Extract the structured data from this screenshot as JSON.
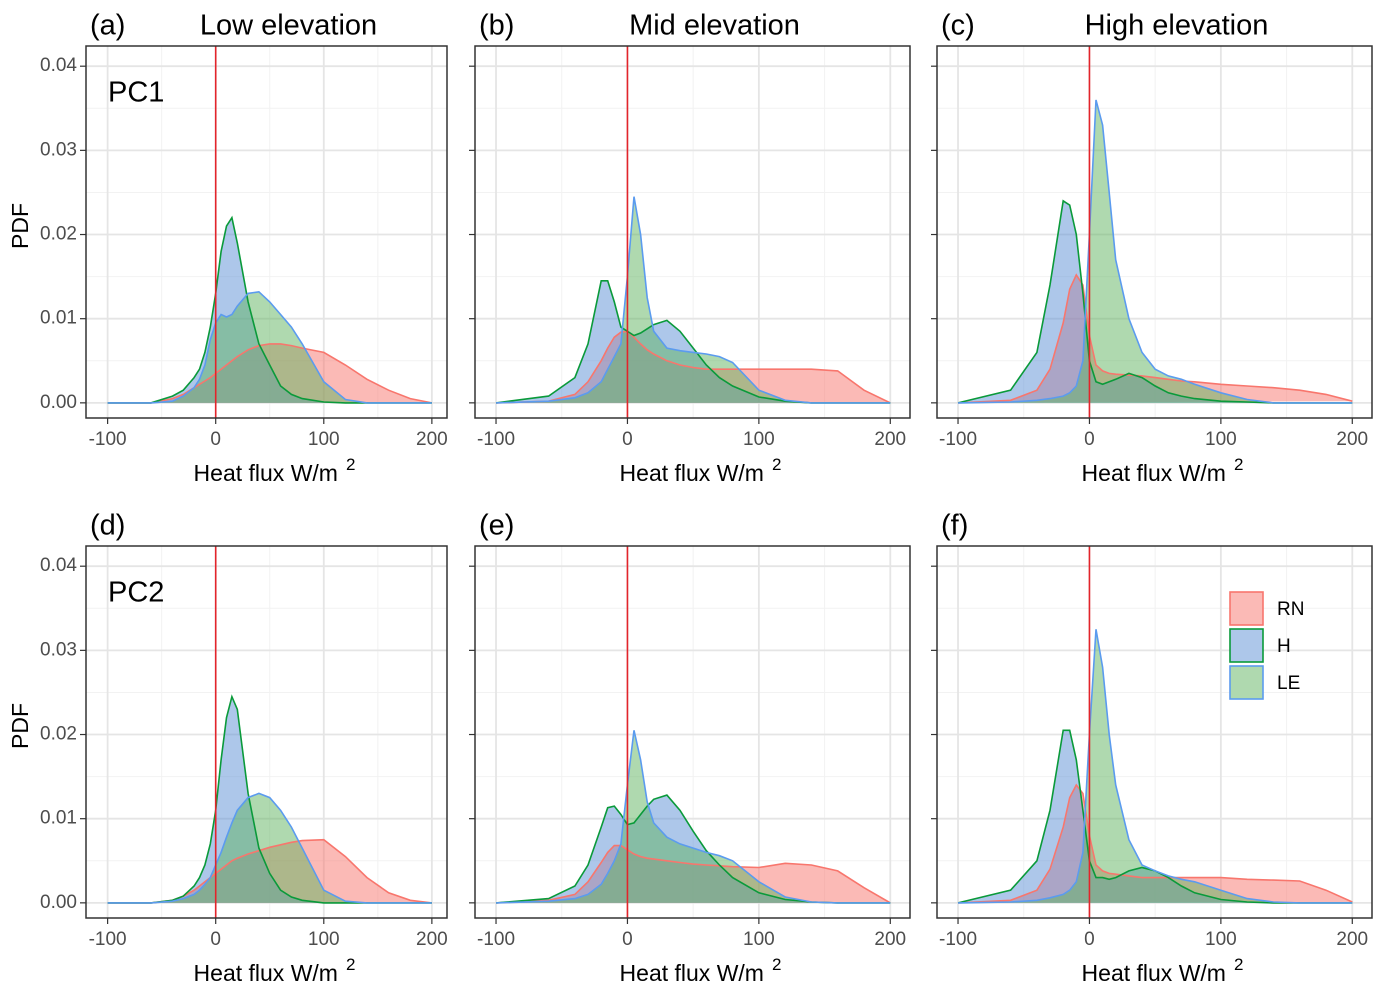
{
  "chart_data": [
    {
      "type": "area",
      "panel_label": "(a)",
      "title": "Low elevation",
      "annotation": "PC1",
      "ylabel": "PDF",
      "xlabel": "Heat flux  W/m",
      "xlabel_superscript": "2",
      "x": [
        -100,
        -60,
        -40,
        -30,
        -20,
        -15,
        -10,
        -5,
        0,
        5,
        10,
        15,
        20,
        30,
        40,
        50,
        60,
        70,
        80,
        100,
        120,
        140,
        160,
        180,
        200
      ],
      "series": [
        {
          "color": "#f8766d",
          "line_color": "#f8766d",
          "values": [
            0,
            0,
            0.0005,
            0.001,
            0.0018,
            0.0022,
            0.0026,
            0.003,
            0.0035,
            0.004,
            0.0045,
            0.005,
            0.0055,
            0.0063,
            0.0068,
            0.007,
            0.007,
            0.0068,
            0.0065,
            0.006,
            0.0045,
            0.0028,
            0.0015,
            0.0005,
            0
          ]
        },
        {
          "color": "#5b8fd6",
          "line_color": "#0a9a3a",
          "values": [
            0,
            0,
            0.0008,
            0.0015,
            0.003,
            0.004,
            0.006,
            0.009,
            0.013,
            0.018,
            0.021,
            0.022,
            0.019,
            0.012,
            0.007,
            0.0045,
            0.002,
            0.001,
            0.0005,
            0.0001,
            0,
            0,
            0,
            0,
            0
          ]
        },
        {
          "color": "#5fb35f",
          "line_color": "#5b9bef",
          "values": [
            0,
            0,
            0.0002,
            0.0008,
            0.0018,
            0.0028,
            0.0045,
            0.0075,
            0.0095,
            0.0105,
            0.0102,
            0.0105,
            0.0115,
            0.013,
            0.0132,
            0.012,
            0.0105,
            0.009,
            0.007,
            0.0025,
            0.0004,
            0,
            0,
            0,
            0
          ]
        }
      ],
      "xlim": [
        -120,
        214
      ],
      "ylim": [
        -0.0018,
        0.0424
      ],
      "xticks": [
        -100,
        0,
        100,
        200
      ],
      "yticks": [
        {
          "value": 0,
          "label": "0.00"
        },
        0.01,
        0.02,
        0.03,
        0.04
      ],
      "minor_xticks": [
        -50,
        50,
        150
      ],
      "minor_yticks": [
        0.005,
        0.015,
        0.025,
        0.035
      ],
      "grid": true,
      "vline": 0,
      "vline_color": "#e3242b"
    },
    {
      "type": "area",
      "panel_label": "(b)",
      "title": "Mid elevation",
      "xlabel": "Heat flux  W/m",
      "xlabel_superscript": "2",
      "x": [
        -100,
        -60,
        -40,
        -30,
        -20,
        -15,
        -10,
        -5,
        0,
        5,
        10,
        15,
        20,
        30,
        40,
        50,
        60,
        70,
        80,
        100,
        120,
        140,
        160,
        180,
        200
      ],
      "series": [
        {
          "color": "#f8766d",
          "line_color": "#f8766d",
          "values": [
            0,
            0.0002,
            0.001,
            0.0025,
            0.005,
            0.0065,
            0.0078,
            0.0084,
            0.0085,
            0.0078,
            0.007,
            0.0063,
            0.0058,
            0.005,
            0.0045,
            0.0042,
            0.004,
            0.004,
            0.004,
            0.004,
            0.004,
            0.004,
            0.0038,
            0.0015,
            0
          ]
        },
        {
          "color": "#5b8fd6",
          "line_color": "#0a9a3a",
          "values": [
            0,
            0.0008,
            0.003,
            0.007,
            0.0145,
            0.0145,
            0.012,
            0.009,
            0.0085,
            0.008,
            0.0083,
            0.0088,
            0.0093,
            0.0098,
            0.0085,
            0.0065,
            0.0045,
            0.003,
            0.002,
            0.0007,
            0.0002,
            0,
            0,
            0,
            0
          ]
        },
        {
          "color": "#5fb35f",
          "line_color": "#5b9bef",
          "values": [
            0,
            0.0002,
            0.0006,
            0.0012,
            0.0025,
            0.004,
            0.0055,
            0.007,
            0.015,
            0.0245,
            0.02,
            0.0125,
            0.0085,
            0.0065,
            0.0062,
            0.006,
            0.0058,
            0.0055,
            0.0048,
            0.0015,
            0.0003,
            0,
            0,
            0,
            0
          ]
        }
      ],
      "xlim": [
        -116,
        215
      ],
      "ylim": [
        -0.0018,
        0.0424
      ],
      "xticks": [
        -100,
        0,
        100,
        200
      ],
      "yticks": [
        0,
        0.01,
        0.02,
        0.03,
        0.04
      ],
      "show_ytick_labels": false,
      "minor_xticks": [
        -50,
        50,
        150
      ],
      "minor_yticks": [
        0.005,
        0.015,
        0.025,
        0.035
      ],
      "grid": true,
      "vline": 0,
      "vline_color": "#e3242b"
    },
    {
      "type": "area",
      "panel_label": "(c)",
      "title": "High elevation",
      "xlabel": "Heat flux  W/m",
      "xlabel_superscript": "2",
      "x": [
        -100,
        -60,
        -40,
        -30,
        -20,
        -15,
        -10,
        -5,
        0,
        5,
        10,
        15,
        20,
        30,
        40,
        50,
        60,
        70,
        80,
        100,
        120,
        140,
        160,
        180,
        200
      ],
      "series": [
        {
          "color": "#f8766d",
          "line_color": "#f8766d",
          "values": [
            0,
            0.0003,
            0.0015,
            0.004,
            0.0095,
            0.0135,
            0.0152,
            0.014,
            0.008,
            0.0045,
            0.0038,
            0.0035,
            0.0034,
            0.0033,
            0.0032,
            0.003,
            0.0028,
            0.0026,
            0.0025,
            0.0022,
            0.002,
            0.0018,
            0.0015,
            0.001,
            0.0002
          ]
        },
        {
          "color": "#5b8fd6",
          "line_color": "#0a9a3a",
          "values": [
            0,
            0.0015,
            0.006,
            0.014,
            0.024,
            0.0235,
            0.02,
            0.013,
            0.005,
            0.0025,
            0.0022,
            0.0025,
            0.0028,
            0.0035,
            0.003,
            0.002,
            0.0012,
            0.0008,
            0.0005,
            0.0002,
            0.0001,
            0,
            0,
            0,
            0
          ]
        },
        {
          "color": "#5fb35f",
          "line_color": "#5b9bef",
          "values": [
            0,
            0.0001,
            0.0003,
            0.0005,
            0.0008,
            0.0012,
            0.002,
            0.005,
            0.02,
            0.036,
            0.033,
            0.025,
            0.017,
            0.01,
            0.006,
            0.004,
            0.0032,
            0.0028,
            0.0022,
            0.0012,
            0.0004,
            0,
            0,
            0,
            0
          ]
        }
      ],
      "xlim": [
        -116,
        215
      ],
      "ylim": [
        -0.0018,
        0.0424
      ],
      "xticks": [
        -100,
        0,
        100,
        200
      ],
      "yticks": [
        0,
        0.01,
        0.02,
        0.03,
        0.04
      ],
      "show_ytick_labels": false,
      "minor_xticks": [
        -50,
        50,
        150
      ],
      "minor_yticks": [
        0.005,
        0.015,
        0.025,
        0.035
      ],
      "grid": true,
      "vline": 0,
      "vline_color": "#e3242b"
    },
    {
      "type": "area",
      "panel_label": "(d)",
      "annotation": "PC2",
      "ylabel": "PDF",
      "xlabel": "Heat flux  W/m",
      "xlabel_superscript": "2",
      "x": [
        -100,
        -60,
        -40,
        -30,
        -20,
        -15,
        -10,
        -5,
        0,
        5,
        10,
        15,
        20,
        30,
        40,
        50,
        60,
        70,
        80,
        100,
        120,
        140,
        160,
        180,
        200
      ],
      "series": [
        {
          "color": "#f8766d",
          "line_color": "#f8766d",
          "values": [
            0,
            0,
            0.0003,
            0.0008,
            0.0015,
            0.002,
            0.0025,
            0.003,
            0.0035,
            0.004,
            0.0045,
            0.005,
            0.0053,
            0.0058,
            0.0062,
            0.0066,
            0.0069,
            0.0072,
            0.0074,
            0.0075,
            0.0055,
            0.003,
            0.0012,
            0.0003,
            0
          ]
        },
        {
          "color": "#5b8fd6",
          "line_color": "#0a9a3a",
          "values": [
            0,
            0,
            0.0003,
            0.0008,
            0.002,
            0.003,
            0.0045,
            0.007,
            0.011,
            0.017,
            0.022,
            0.0245,
            0.023,
            0.013,
            0.0065,
            0.0035,
            0.0015,
            0.0007,
            0.0003,
            0,
            0,
            0,
            0,
            0,
            0
          ]
        },
        {
          "color": "#5fb35f",
          "line_color": "#5b9bef",
          "values": [
            0,
            0,
            0.0002,
            0.0005,
            0.001,
            0.0015,
            0.0022,
            0.003,
            0.0045,
            0.006,
            0.0078,
            0.0095,
            0.011,
            0.0125,
            0.013,
            0.0125,
            0.011,
            0.009,
            0.0065,
            0.0015,
            0.0002,
            0,
            0,
            0,
            0
          ]
        }
      ],
      "xlim": [
        -120,
        214
      ],
      "ylim": [
        -0.0018,
        0.0424
      ],
      "xticks": [
        -100,
        0,
        100,
        200
      ],
      "yticks": [
        {
          "value": 0,
          "label": "0.00"
        },
        0.01,
        0.02,
        0.03,
        0.04
      ],
      "minor_xticks": [
        -50,
        50,
        150
      ],
      "minor_yticks": [
        0.005,
        0.015,
        0.025,
        0.035
      ],
      "grid": true,
      "vline": 0,
      "vline_color": "#e3242b"
    },
    {
      "type": "area",
      "panel_label": "(e)",
      "xlabel": "Heat flux  W/m",
      "xlabel_superscript": "2",
      "x": [
        -100,
        -60,
        -40,
        -30,
        -20,
        -15,
        -10,
        -5,
        0,
        5,
        10,
        15,
        20,
        30,
        40,
        50,
        60,
        70,
        80,
        100,
        120,
        140,
        160,
        180,
        200
      ],
      "series": [
        {
          "color": "#f8766d",
          "line_color": "#f8766d",
          "values": [
            0,
            0.0003,
            0.001,
            0.0025,
            0.0048,
            0.006,
            0.0068,
            0.0068,
            0.0063,
            0.0058,
            0.0055,
            0.0053,
            0.0052,
            0.005,
            0.0048,
            0.0046,
            0.0045,
            0.0044,
            0.0043,
            0.0042,
            0.0047,
            0.0045,
            0.0038,
            0.0018,
            0
          ]
        },
        {
          "color": "#5b8fd6",
          "line_color": "#0a9a3a",
          "values": [
            0,
            0.0005,
            0.002,
            0.0045,
            0.009,
            0.0113,
            0.0115,
            0.0105,
            0.0093,
            0.0095,
            0.0105,
            0.0115,
            0.0123,
            0.0128,
            0.011,
            0.0085,
            0.0062,
            0.0045,
            0.003,
            0.0012,
            0.0004,
            0.0001,
            0,
            0,
            0
          ]
        },
        {
          "color": "#5fb35f",
          "line_color": "#5b9bef",
          "values": [
            0,
            0.0002,
            0.0005,
            0.001,
            0.0022,
            0.0035,
            0.005,
            0.007,
            0.014,
            0.0205,
            0.017,
            0.012,
            0.0095,
            0.0078,
            0.007,
            0.0065,
            0.006,
            0.0056,
            0.005,
            0.0025,
            0.0007,
            0.0001,
            0,
            0,
            0
          ]
        }
      ],
      "xlim": [
        -116,
        215
      ],
      "ylim": [
        -0.0018,
        0.0424
      ],
      "xticks": [
        -100,
        0,
        100,
        200
      ],
      "yticks": [
        0,
        0.01,
        0.02,
        0.03,
        0.04
      ],
      "show_ytick_labels": false,
      "minor_xticks": [
        -50,
        50,
        150
      ],
      "minor_yticks": [
        0.005,
        0.015,
        0.025,
        0.035
      ],
      "grid": true,
      "vline": 0,
      "vline_color": "#e3242b"
    },
    {
      "type": "area",
      "panel_label": "(f)",
      "xlabel": "Heat flux  W/m",
      "xlabel_superscript": "2",
      "legend": "top-right",
      "x": [
        -100,
        -60,
        -40,
        -30,
        -20,
        -15,
        -10,
        -5,
        0,
        5,
        10,
        15,
        20,
        30,
        40,
        50,
        60,
        70,
        80,
        100,
        120,
        140,
        160,
        180,
        200
      ],
      "series": [
        {
          "name": "RN",
          "color": "#f8766d",
          "line_color": "#f8766d",
          "values": [
            0,
            0.0003,
            0.0015,
            0.004,
            0.009,
            0.0125,
            0.014,
            0.013,
            0.008,
            0.0045,
            0.0038,
            0.0035,
            0.0034,
            0.0032,
            0.003,
            0.003,
            0.003,
            0.003,
            0.003,
            0.003,
            0.0028,
            0.0027,
            0.0026,
            0.0015,
            0.0001
          ]
        },
        {
          "name": "H",
          "color": "#5b8fd6",
          "line_color": "#0a9a3a",
          "values": [
            0,
            0.0015,
            0.005,
            0.011,
            0.0205,
            0.0205,
            0.017,
            0.011,
            0.005,
            0.003,
            0.003,
            0.0028,
            0.003,
            0.0038,
            0.0042,
            0.0038,
            0.003,
            0.002,
            0.0012,
            0.0004,
            0.0001,
            0,
            0,
            0,
            0
          ]
        },
        {
          "name": "LE",
          "color": "#5fb35f",
          "line_color": "#5b9bef",
          "values": [
            0,
            0.0001,
            0.0003,
            0.0006,
            0.001,
            0.0015,
            0.0025,
            0.006,
            0.02,
            0.0325,
            0.028,
            0.02,
            0.014,
            0.0075,
            0.0045,
            0.0038,
            0.0032,
            0.0028,
            0.0025,
            0.0015,
            0.0005,
            0.0001,
            0,
            0,
            0
          ]
        }
      ],
      "xlim": [
        -116,
        215
      ],
      "ylim": [
        -0.0018,
        0.0424
      ],
      "xticks": [
        -100,
        0,
        100,
        200
      ],
      "yticks": [
        0,
        0.01,
        0.02,
        0.03,
        0.04
      ],
      "show_ytick_labels": false,
      "minor_xticks": [
        -50,
        50,
        150
      ],
      "minor_yticks": [
        0.005,
        0.015,
        0.025,
        0.035
      ],
      "grid": true,
      "vline": 0,
      "vline_color": "#e3242b"
    }
  ]
}
